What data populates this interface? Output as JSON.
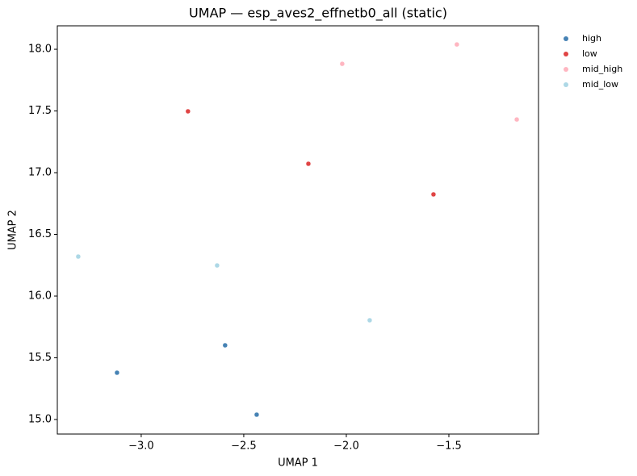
{
  "chart_data": {
    "type": "scatter",
    "title": "UMAP — esp_aves2_effnetb0_all (static)",
    "x_label": "UMAP 1",
    "y_label": "UMAP 2",
    "xlim": [
      -3.409,
      -1.063
    ],
    "ylim": [
      14.882,
      18.19
    ],
    "xticks": [
      {
        "value": -3,
        "label": "−3.0"
      },
      {
        "value": -2.5,
        "label": "−2.5"
      },
      {
        "value": -2,
        "label": "−2.0"
      },
      {
        "value": -1.5,
        "label": "−1.5"
      }
    ],
    "yticks": [
      {
        "value": 15,
        "label": "15.0"
      },
      15.5,
      {
        "value": 16,
        "label": "16.0"
      },
      16.5,
      {
        "value": 17,
        "label": "17.0"
      },
      17.5,
      {
        "value": 18,
        "label": "18.0"
      }
    ],
    "grid": false,
    "legend": "outside-right",
    "series": [
      {
        "name": "high",
        "color": "#4682b4",
        "x": [
          -3.118,
          -2.591,
          -2.437
        ],
        "y": [
          15.379,
          15.601,
          15.039
        ]
      },
      {
        "name": "low",
        "color": "#e04444",
        "x": [
          -2.772,
          -2.185,
          -1.575
        ],
        "y": [
          17.497,
          17.072,
          16.824
        ]
      },
      {
        "name": "mid_high",
        "color": "#ffb6c1",
        "x": [
          -2.02,
          -1.461,
          -1.169
        ],
        "y": [
          17.882,
          18.039,
          17.431
        ]
      },
      {
        "name": "mid_low",
        "color": "#add8e6",
        "x": [
          -3.307,
          -2.63,
          -1.886
        ],
        "y": [
          16.32,
          16.248,
          15.804
        ]
      }
    ]
  }
}
